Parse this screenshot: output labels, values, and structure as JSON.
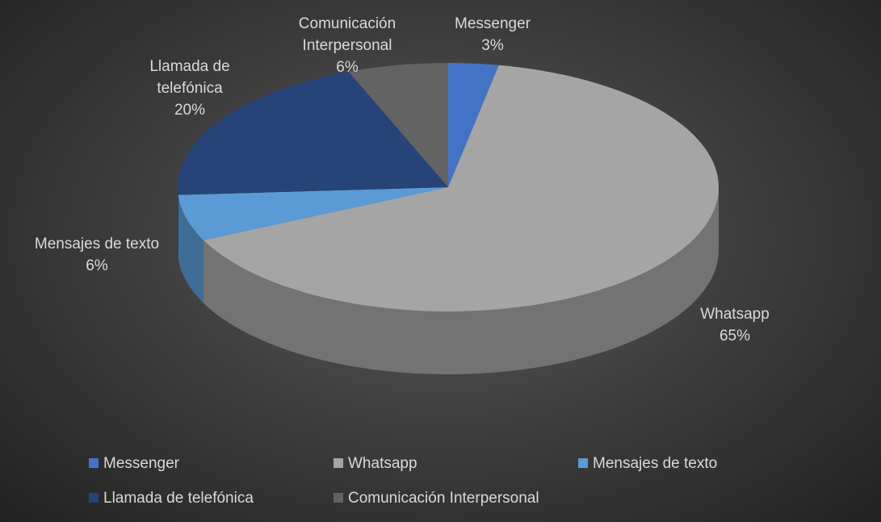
{
  "chart_data": {
    "type": "pie",
    "categories": [
      "Messenger",
      "Whatsapp",
      "Mensajes de texto",
      "Llamada de telefónica",
      "Comunicación Interpersonal"
    ],
    "values": [
      3,
      65,
      6,
      20,
      6
    ],
    "value_labels": [
      "3%",
      "65%",
      "6%",
      "20%",
      "6%"
    ],
    "colors": [
      "#4472c4",
      "#a5a5a5",
      "#5b9bd5",
      "#264478",
      "#636363"
    ],
    "legend": "bottom"
  }
}
